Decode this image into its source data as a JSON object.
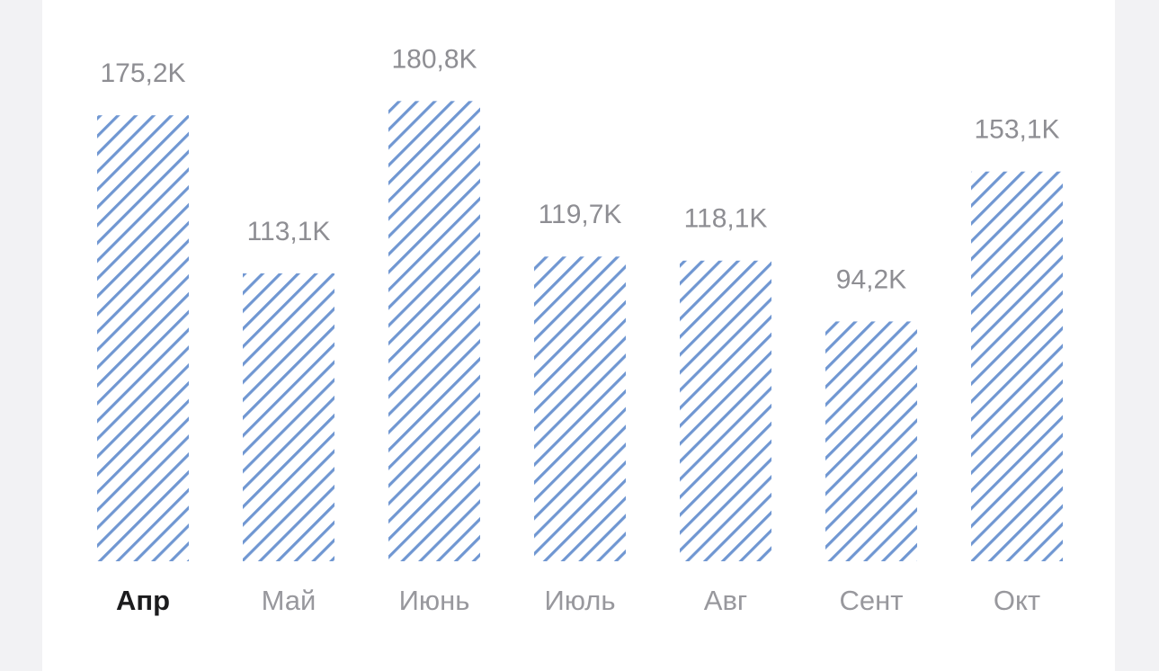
{
  "chart_data": {
    "type": "bar",
    "categories": [
      "Апр",
      "Май",
      "Июнь",
      "Июль",
      "Авг",
      "Сент",
      "Окт"
    ],
    "values": [
      175.2,
      113.1,
      180.8,
      119.7,
      118.1,
      94.2,
      153.1
    ],
    "value_labels": [
      "175,2K",
      "113,1K",
      "180,8K",
      "119,7K",
      "118,1K",
      "94,2K",
      "153,1K"
    ],
    "color": "#7097d2"
  }
}
